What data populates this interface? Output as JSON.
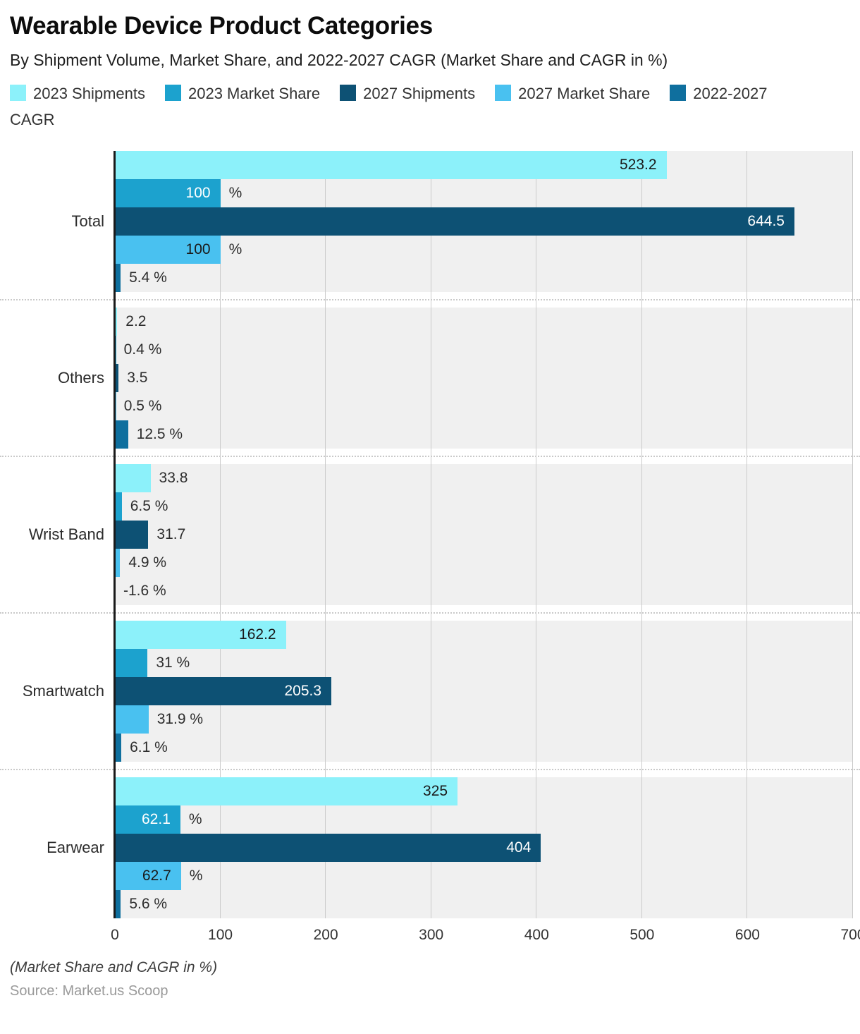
{
  "header": {
    "title": "Wearable Device Product Categories",
    "subtitle": "By Shipment Volume, Market Share, and 2022-2027 CAGR (Market Share and CAGR in %)"
  },
  "chart_data": {
    "type": "bar",
    "orientation": "horizontal",
    "title": "Wearable Device Product Categories",
    "subtitle": "By Shipment Volume, Market Share, and 2022-2027 CAGR (Market Share and CAGR in %)",
    "x_axis": {
      "min": 0,
      "max": 700,
      "ticks": [
        0,
        100,
        200,
        300,
        400,
        500,
        600,
        700
      ],
      "grid": true
    },
    "legend_position": "top",
    "plot_background": "#f0f0f0",
    "series": [
      {
        "name": "2023 Shipments",
        "color": "#8cf1fa",
        "text_color": "#1a1a1a"
      },
      {
        "name": "2023 Market Share",
        "color": "#1ca2ce",
        "text_color": "#ffffff"
      },
      {
        "name": "2027 Shipments",
        "color": "#0d5174",
        "text_color": "#ffffff"
      },
      {
        "name": "2027 Market Share",
        "color": "#49c1f0",
        "text_color": "#1a1a1a"
      },
      {
        "name": "2022-2027 CAGR",
        "color": "#0f6f9e",
        "text_color": "#ffffff"
      }
    ],
    "categories": [
      "Total",
      "Others",
      "Wrist Band",
      "Smartwatch",
      "Earwear"
    ],
    "values": [
      [
        {
          "v": 523.2,
          "label": "523.2",
          "pct": false,
          "inside": true
        },
        {
          "v": 100,
          "label": "100",
          "pct": true,
          "inside": true
        },
        {
          "v": 644.5,
          "label": "644.5",
          "pct": false,
          "inside": true
        },
        {
          "v": 100,
          "label": "100",
          "pct": true,
          "inside": true
        },
        {
          "v": 5.4,
          "label": "5.4",
          "pct": true,
          "inside": false
        }
      ],
      [
        {
          "v": 2.2,
          "label": "2.2",
          "pct": false,
          "inside": false
        },
        {
          "v": 0.4,
          "label": "0.4",
          "pct": true,
          "inside": false
        },
        {
          "v": 3.5,
          "label": "3.5",
          "pct": false,
          "inside": false
        },
        {
          "v": 0.5,
          "label": "0.5",
          "pct": true,
          "inside": false
        },
        {
          "v": 12.5,
          "label": "12.5",
          "pct": true,
          "inside": false
        }
      ],
      [
        {
          "v": 33.8,
          "label": "33.8",
          "pct": false,
          "inside": false
        },
        {
          "v": 6.5,
          "label": "6.5",
          "pct": true,
          "inside": false
        },
        {
          "v": 31.7,
          "label": "31.7",
          "pct": false,
          "inside": false
        },
        {
          "v": 4.9,
          "label": "4.9",
          "pct": true,
          "inside": false
        },
        {
          "v": -1.6,
          "label": "-1.6",
          "pct": true,
          "inside": false
        }
      ],
      [
        {
          "v": 162.2,
          "label": "162.2",
          "pct": false,
          "inside": true
        },
        {
          "v": 31,
          "label": "31",
          "pct": true,
          "inside": false
        },
        {
          "v": 205.3,
          "label": "205.3",
          "pct": false,
          "inside": true
        },
        {
          "v": 31.9,
          "label": "31.9",
          "pct": true,
          "inside": false
        },
        {
          "v": 6.1,
          "label": "6.1",
          "pct": true,
          "inside": false
        }
      ],
      [
        {
          "v": 325,
          "label": "325",
          "pct": false,
          "inside": true
        },
        {
          "v": 62.1,
          "label": "62.1",
          "pct": true,
          "inside": true
        },
        {
          "v": 404,
          "label": "404",
          "pct": false,
          "inside": true
        },
        {
          "v": 62.7,
          "label": "62.7",
          "pct": true,
          "inside": true
        },
        {
          "v": 5.6,
          "label": "5.6",
          "pct": true,
          "inside": false
        }
      ]
    ]
  },
  "footer": {
    "note": "(Market Share and CAGR in %)",
    "source": "Source: Market.us Scoop"
  }
}
